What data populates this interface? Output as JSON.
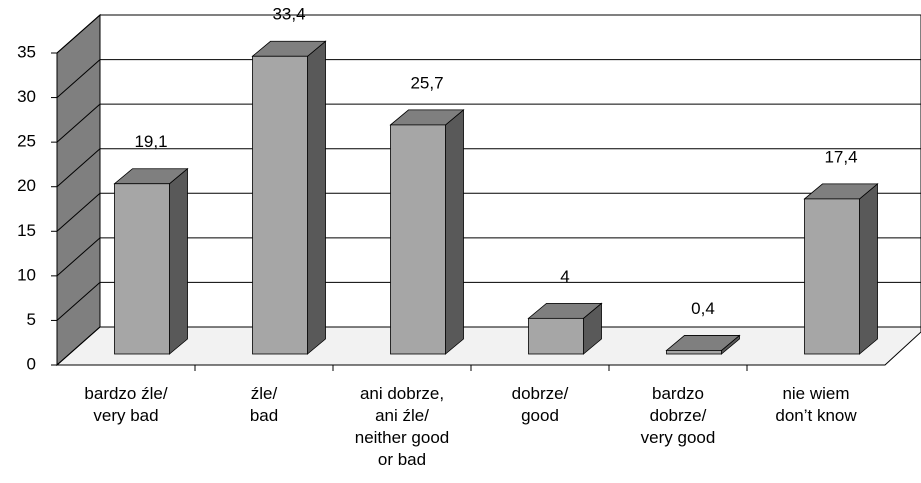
{
  "chart_data": {
    "type": "bar3d",
    "categories": [
      "bardzo źle/\nvery bad",
      "źle/\nbad",
      "ani dobrze,\nani źle/\nneither good\nor bad",
      "dobrze/\ngood",
      "bardzo\ndobrze/\nvery good",
      "nie wiem\ndon’t know"
    ],
    "values": [
      19.1,
      33.4,
      25.7,
      4,
      0.4,
      17.4
    ],
    "value_labels": [
      "19,1",
      "33,4",
      "25,7",
      "4",
      "0,4",
      "17,4"
    ],
    "color": "#a6a6a6",
    "ylim": [
      0,
      35
    ],
    "yticks": [
      0,
      5,
      10,
      15,
      20,
      25,
      30,
      35
    ],
    "grid": true
  }
}
